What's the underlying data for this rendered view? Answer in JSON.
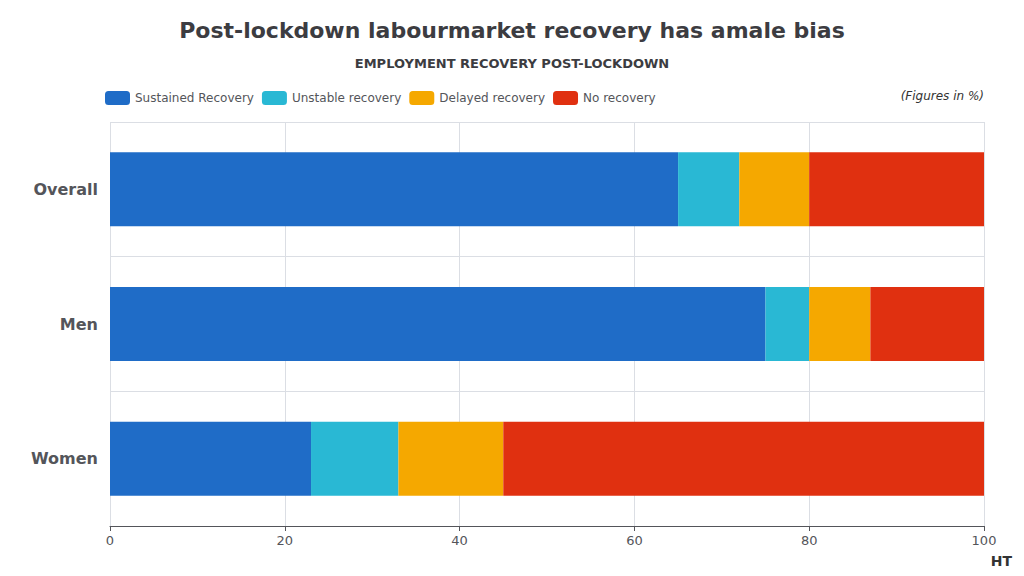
{
  "chart_data": {
    "type": "bar",
    "title": "Post-lockdown labourmarket recovery has amale bias",
    "subtitle": "EMPLOYMENT RECOVERY POST-LOCKDOWN",
    "orientation": "horizontal",
    "stacked": true,
    "categories": [
      "Overall",
      "Men",
      "Women"
    ],
    "series": [
      {
        "name": "Sustained Recovery",
        "color": "#1f6cc7",
        "values": [
          65,
          75,
          23
        ]
      },
      {
        "name": "Unstable recovery",
        "color": "#29b8d4",
        "values": [
          7,
          5,
          10
        ]
      },
      {
        "name": "Delayed recovery",
        "color": "#f5a800",
        "values": [
          8,
          7,
          12
        ]
      },
      {
        "name": "No recovery",
        "color": "#e03010",
        "values": [
          20,
          13,
          55
        ]
      }
    ],
    "xlim": [
      0,
      100
    ],
    "xticks": [
      0,
      20,
      40,
      60,
      80,
      100
    ],
    "grid": true,
    "legend": "upper left",
    "annotations": [
      "(Figures in %)",
      "HT"
    ]
  }
}
